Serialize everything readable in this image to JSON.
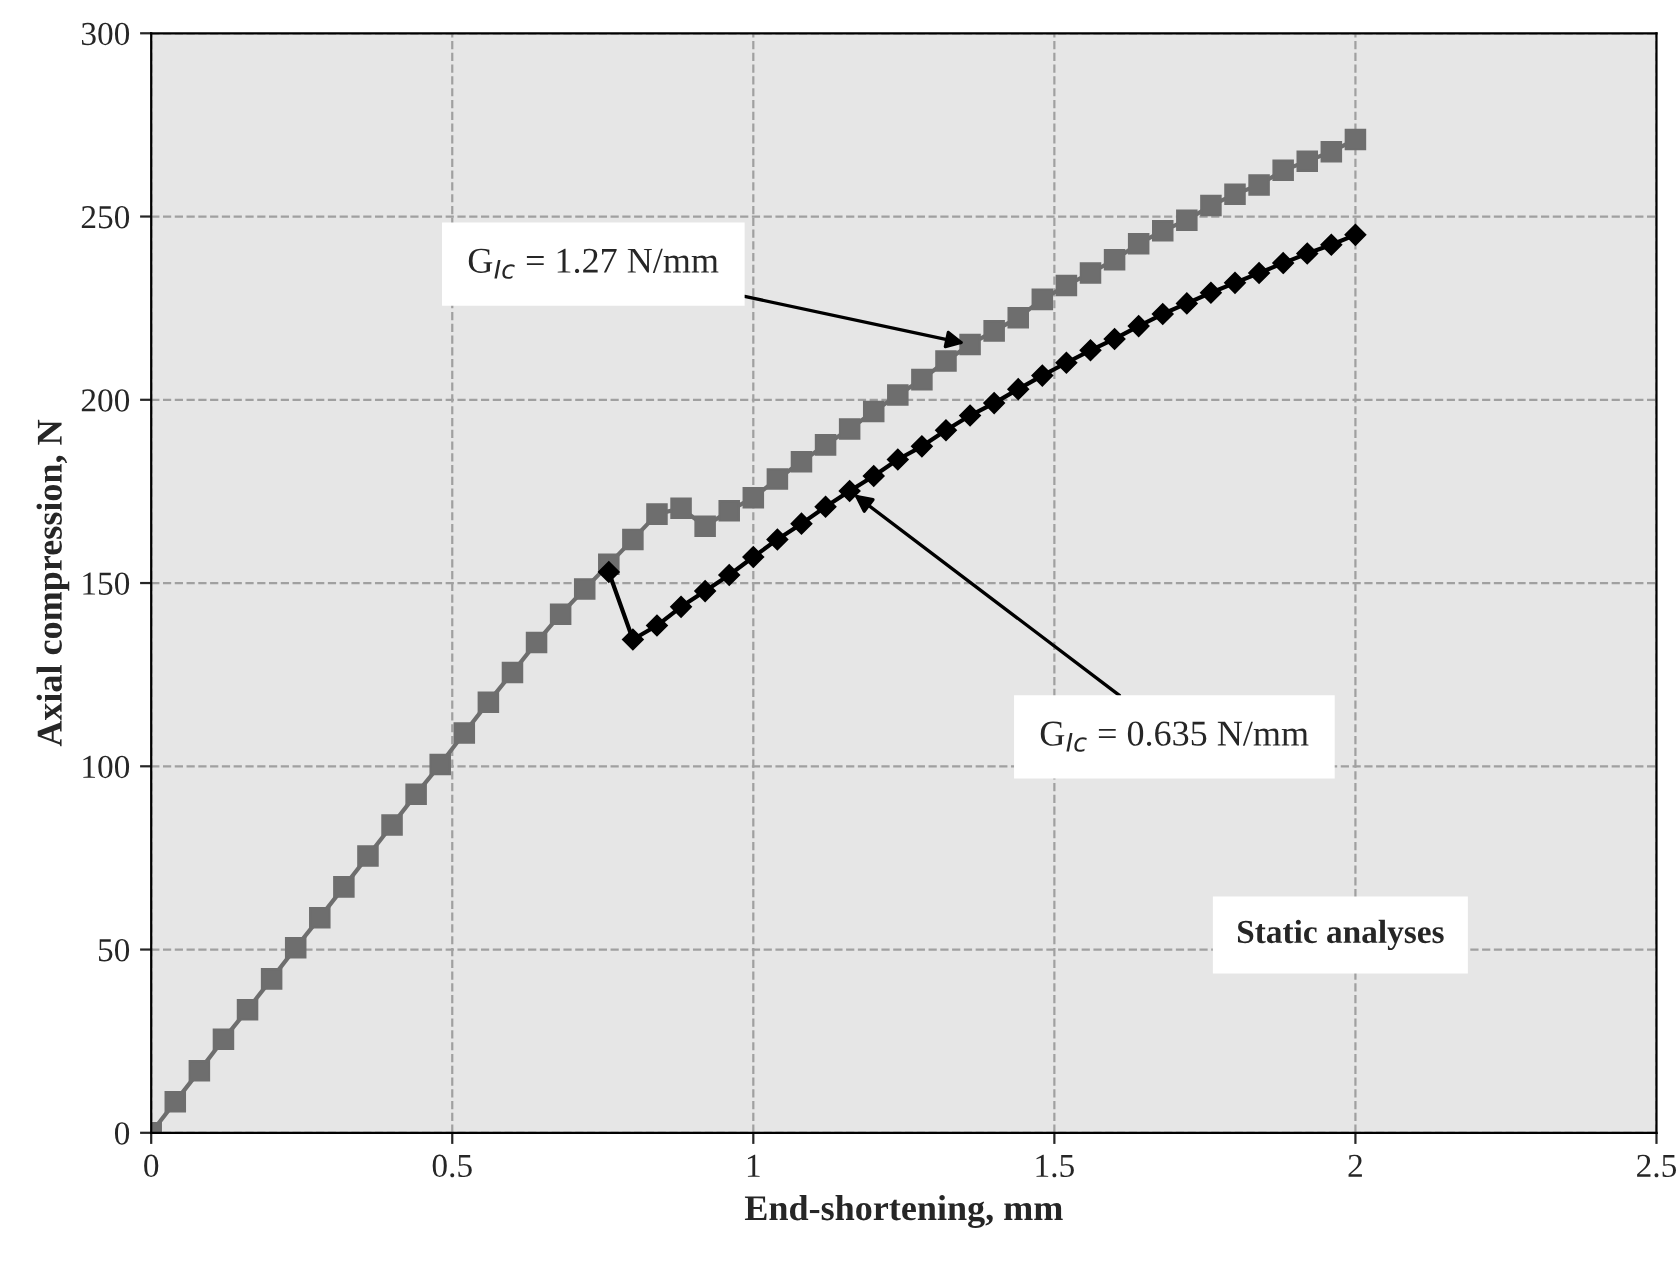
{
  "chart_data": {
    "type": "line",
    "xlabel": "End-shortening, mm",
    "ylabel": "Axial compression, N",
    "xlim": [
      0,
      2.5
    ],
    "xticks": [
      0,
      0.5,
      1,
      1.5,
      2,
      2.5
    ],
    "ylim": [
      0,
      300
    ],
    "yticks": [
      0,
      50,
      100,
      150,
      200,
      250,
      300
    ],
    "grid": true,
    "legend": false,
    "series": [
      {
        "color": "#6e6e6e",
        "marker": "square",
        "x": [
          0,
          0.04,
          0.08,
          0.12,
          0.16,
          0.2,
          0.24,
          0.28,
          0.32,
          0.36,
          0.4,
          0.44,
          0.48,
          0.52,
          0.56,
          0.6,
          0.64,
          0.68,
          0.72,
          0.76,
          0.8,
          0.84,
          0.88,
          0.92,
          0.96,
          1.0,
          1.04,
          1.08,
          1.12,
          1.16,
          1.2,
          1.24,
          1.28,
          1.32,
          1.36,
          1.4,
          1.44,
          1.48,
          1.52,
          1.56,
          1.6,
          1.64,
          1.68,
          1.72,
          1.76,
          1.8,
          1.84,
          1.88,
          1.92,
          1.96,
          2.0
        ],
        "values": [
          0,
          8.5,
          16.9,
          25.5,
          33.6,
          42,
          50.5,
          58.7,
          67.1,
          75.5,
          84,
          92.4,
          100.5,
          109.1,
          117.5,
          125.6,
          133.8,
          141.5,
          148.4,
          155.1,
          161.9,
          168.8,
          170.4,
          165.5,
          169.7,
          173.3,
          178.4,
          183.1,
          187.7,
          192,
          196.8,
          201.3,
          205.5,
          210.6,
          215.1,
          218.8,
          222.4,
          227.4,
          231.2,
          234.6,
          238.2,
          242.6,
          246.1,
          249,
          253,
          256.1,
          258.6,
          262.6,
          265.1,
          267.7,
          271
        ]
      },
      {
        "color": "#000000",
        "marker": "diamond",
        "x": [
          0.76,
          0.8,
          0.84,
          0.88,
          0.92,
          0.96,
          1.0,
          1.04,
          1.08,
          1.12,
          1.16,
          1.2,
          1.24,
          1.28,
          1.32,
          1.36,
          1.4,
          1.44,
          1.48,
          1.52,
          1.56,
          1.6,
          1.64,
          1.68,
          1.72,
          1.76,
          1.8,
          1.84,
          1.88,
          1.92,
          1.96,
          2.0
        ],
        "values": [
          153,
          134.6,
          138.4,
          143.5,
          147.8,
          152.2,
          157.1,
          161.9,
          166.2,
          170.8,
          175.1,
          179.2,
          183.7,
          187.3,
          191.7,
          195.7,
          199.1,
          202.9,
          206.6,
          210.1,
          213.5,
          216.6,
          220.1,
          223.4,
          226.3,
          229.2,
          231.9,
          234.6,
          237.3,
          239.9,
          242.3,
          245
        ]
      }
    ],
    "annotations": [
      {
        "text": "G$_{Ic}$ = 1.27 N/mm",
        "x": 1.36,
        "y": 215.1
      },
      {
        "text": "G$_{Ic}$ = 0.635 N/mm",
        "x": 1.16,
        "y": 175.1
      },
      "Static analyses"
    ]
  }
}
